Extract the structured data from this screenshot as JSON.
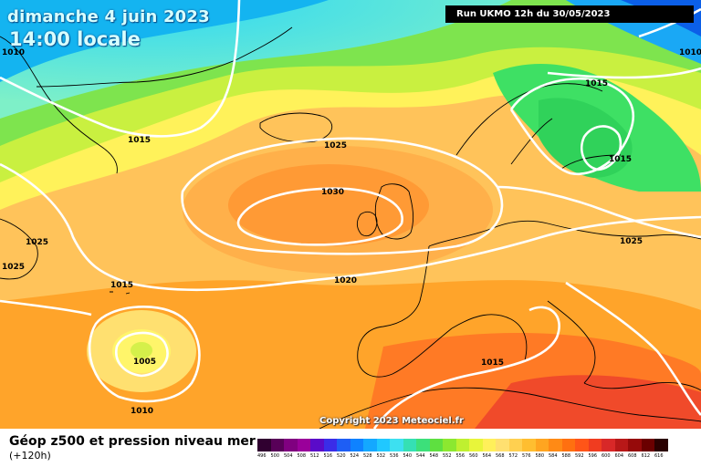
{
  "header": {
    "date": "dimanche 4 juin 2023",
    "time": "14:00 locale",
    "run": "Run UKMO 12h du 30/05/2023"
  },
  "copyright": "Copyright 2023 Meteociel.fr",
  "isobar_labels": [
    "1010",
    "1010",
    "1015",
    "1015",
    "1025",
    "1015",
    "1030",
    "1025",
    "1025",
    "1025",
    "1015",
    "1020",
    "1005",
    "1015",
    "1010"
  ],
  "legend": {
    "title": "Géop z500 et pression niveau mer",
    "subtitle": "(+120h)",
    "ticks": [
      "496",
      "500",
      "504",
      "508",
      "512",
      "516",
      "520",
      "524",
      "528",
      "532",
      "536",
      "540",
      "544",
      "548",
      "552",
      "556",
      "560",
      "564",
      "568",
      "572",
      "576",
      "580",
      "584",
      "588",
      "592",
      "596",
      "600",
      "604",
      "608",
      "612",
      "616"
    ],
    "colors": [
      "#300030",
      "#580058",
      "#800080",
      "#9a009a",
      "#5a0bc9",
      "#3a2de8",
      "#1e5ef5",
      "#0f82ff",
      "#14a8ff",
      "#20c8ff",
      "#3de0f0",
      "#35e0b4",
      "#3ce07a",
      "#5ee040",
      "#8ce830",
      "#bff030",
      "#e8f53a",
      "#fff05a",
      "#ffe070",
      "#ffd050",
      "#ffbe30",
      "#ffa520",
      "#ff8a15",
      "#ff7010",
      "#ff5518",
      "#f03c20",
      "#d82828",
      "#b81818",
      "#960a0a",
      "#6a0000",
      "#2a0000"
    ]
  }
}
